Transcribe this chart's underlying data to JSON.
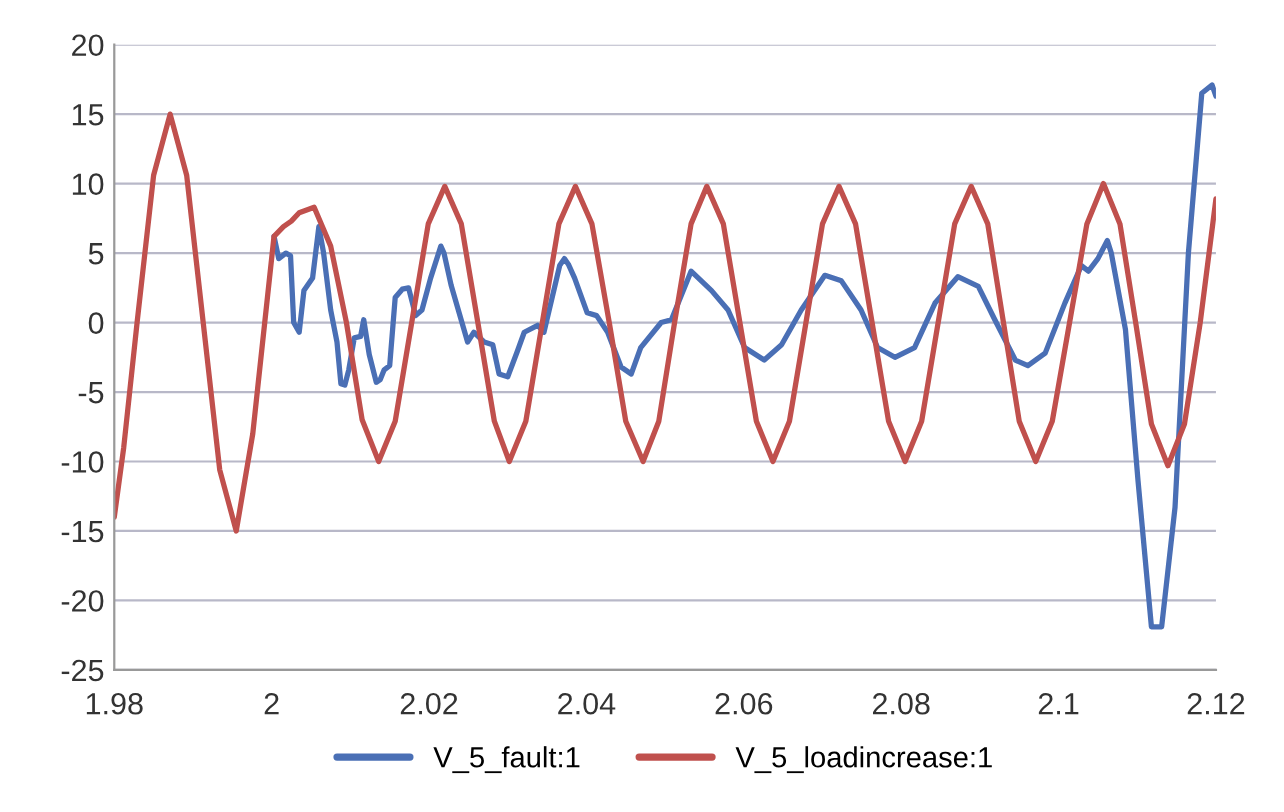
{
  "chart_data": {
    "type": "line",
    "xlim": [
      1.98,
      2.12
    ],
    "xticks": [
      1.98,
      2,
      2.02,
      2.04,
      2.06,
      2.08,
      2.1,
      2.12
    ],
    "ylim": [
      -25,
      20
    ],
    "yticks": [
      -25,
      -20,
      -15,
      -10,
      -5,
      0,
      5,
      10,
      15,
      20
    ],
    "grid": "y",
    "legend": "bottom",
    "marker": "none",
    "line_style": "solid",
    "series": [
      {
        "name": "V_5_fault:1",
        "color": "#4a6fb5",
        "x": [
          2.0003,
          2.0009,
          2.0018,
          2.0024,
          2.0028,
          2.0035,
          2.0041,
          2.0052,
          2.006,
          2.0066,
          2.0075,
          2.0083,
          2.0088,
          2.0093,
          2.0098,
          2.0105,
          2.0113,
          2.0117,
          2.0124,
          2.0133,
          2.0138,
          2.0143,
          2.015,
          2.0157,
          2.0166,
          2.0174,
          2.0183,
          2.0191,
          2.0202,
          2.0215,
          2.0219,
          2.0228,
          2.0249,
          2.0257,
          2.027,
          2.0281,
          2.0289,
          2.03,
          2.0312,
          2.0321,
          2.0338,
          2.0346,
          2.0366,
          2.0372,
          2.0377,
          2.0385,
          2.0401,
          2.0413,
          2.0427,
          2.0444,
          2.0457,
          2.0469,
          2.0495,
          2.0508,
          2.0533,
          2.0559,
          2.058,
          2.0601,
          2.0626,
          2.0648,
          2.0673,
          2.0703,
          2.0724,
          2.0749,
          2.077,
          2.0792,
          2.0817,
          2.0843,
          2.0872,
          2.0898,
          2.0919,
          2.0945,
          2.0961,
          2.0983,
          2.1008,
          2.1029,
          2.1038,
          2.105,
          2.1062,
          2.1067,
          2.1085,
          2.1101,
          2.1118,
          2.1131,
          2.1148,
          2.1165,
          2.1182,
          2.1195,
          2.12
        ],
        "values": [
          6.2,
          4.6,
          5.0,
          4.8,
          0,
          -0.7,
          2.3,
          3.2,
          6.9,
          5.0,
          0.9,
          -1.4,
          -4.4,
          -4.5,
          -3.4,
          -1.1,
          -1.0,
          0.2,
          -2.3,
          -4.3,
          -4.1,
          -3.4,
          -3.1,
          1.8,
          2.4,
          2.5,
          0.5,
          0.9,
          3.2,
          5.5,
          5.0,
          2.7,
          -1.4,
          -0.7,
          -1.4,
          -1.6,
          -3.7,
          -3.9,
          -2.1,
          -0.7,
          -0.2,
          -0.7,
          4.1,
          4.6,
          4.2,
          3.2,
          0.7,
          0.5,
          -0.7,
          -3.2,
          -3.7,
          -1.8,
          0,
          0.2,
          3.7,
          2.3,
          0.9,
          -1.8,
          -2.7,
          -1.6,
          0.9,
          3.4,
          3.0,
          0.9,
          -1.8,
          -2.5,
          -1.8,
          1.4,
          3.3,
          2.6,
          0.2,
          -2.7,
          -3.1,
          -2.2,
          1.4,
          4.1,
          3.7,
          4.6,
          5.9,
          5.0,
          -0.5,
          -11.4,
          -21.9,
          -21.9,
          -13.3,
          5.0,
          16.5,
          17.1,
          16.3
        ]
      },
      {
        "name": "V_5_loadincrease:1",
        "color": "#c0504d",
        "x": [
          1.98,
          1.9812,
          1.9829,
          1.985,
          1.9871,
          1.9892,
          1.9913,
          1.9934,
          1.9955,
          1.9976,
          1.9995,
          2.0003,
          2.0015,
          2.0025,
          2.0035,
          2.0054,
          2.0075,
          2.0095,
          2.0115,
          2.0136,
          2.0157,
          2.0178,
          2.0199,
          2.022,
          2.0241,
          2.0262,
          2.0283,
          2.0302,
          2.0323,
          2.0344,
          2.0365,
          2.0386,
          2.0407,
          2.0429,
          2.045,
          2.0472,
          2.0492,
          2.0512,
          2.0533,
          2.0553,
          2.0574,
          2.0595,
          2.0616,
          2.0637,
          2.0658,
          2.0679,
          2.07,
          2.0721,
          2.0742,
          2.0763,
          2.0784,
          2.0805,
          2.0826,
          2.0847,
          2.0868,
          2.0889,
          2.091,
          2.093,
          2.095,
          2.0971,
          2.0992,
          2.1014,
          2.1036,
          2.1057,
          2.1078,
          2.1098,
          2.1118,
          2.1139,
          2.116,
          2.118,
          2.12
        ],
        "values": [
          -14,
          -9,
          0,
          10.6,
          15,
          10.6,
          0,
          -10.6,
          -15,
          -8,
          2,
          6.2,
          6.9,
          7.3,
          7.9,
          8.3,
          5.5,
          0,
          -7,
          -10,
          -7.1,
          0,
          7.1,
          9.8,
          7.1,
          0,
          -7.1,
          -10,
          -7.1,
          0,
          7.1,
          9.8,
          7.1,
          0,
          -7.1,
          -10,
          -7.1,
          0,
          7.1,
          9.8,
          7.1,
          0,
          -7.1,
          -10,
          -7.1,
          0,
          7.1,
          9.8,
          7.1,
          0,
          -7.1,
          -10,
          -7.1,
          0,
          7.1,
          9.8,
          7.1,
          0,
          -7.1,
          -10,
          -7.1,
          0,
          7.1,
          10,
          7.1,
          0,
          -7.3,
          -10.3,
          -7.3,
          0,
          8.9
        ]
      }
    ]
  }
}
